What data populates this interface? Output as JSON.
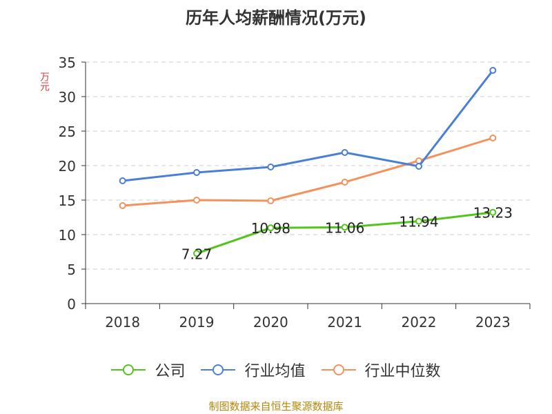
{
  "chart_data": {
    "type": "line",
    "title": "历年人均薪酬情况(万元)",
    "ylabel": "万元",
    "xlabel": "",
    "categories": [
      "2018",
      "2019",
      "2020",
      "2021",
      "2022",
      "2023"
    ],
    "ylim": [
      0,
      35
    ],
    "yticks": [
      0,
      5,
      10,
      15,
      20,
      25,
      30,
      35
    ],
    "grid": true,
    "legend_position": "bottom",
    "series": [
      {
        "name": "公司",
        "color": "#52c41a",
        "values": [
          null,
          7.27,
          10.98,
          11.06,
          11.94,
          13.23
        ],
        "labels": [
          "",
          "7.27",
          "10.98",
          "11.06",
          "11.94",
          "13.23"
        ]
      },
      {
        "name": "行业均值",
        "color": "#4a7fd6",
        "values": [
          17.8,
          19.0,
          19.8,
          21.9,
          19.9,
          33.8
        ],
        "labels": []
      },
      {
        "name": "行业中位数",
        "color": "#f5915c",
        "values": [
          14.2,
          15.0,
          14.9,
          17.6,
          20.7,
          24.0
        ],
        "labels": []
      }
    ]
  },
  "source": "制图数据来自恒生聚源数据库"
}
